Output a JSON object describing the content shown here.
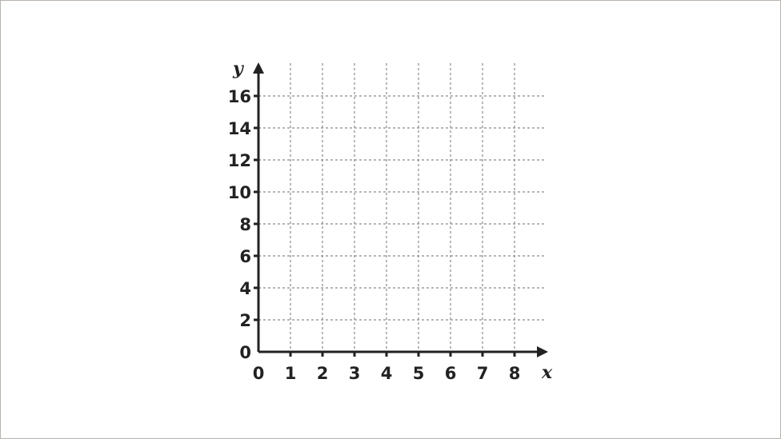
{
  "chart_data": {
    "type": "scatter",
    "title": "",
    "xlabel": "x",
    "ylabel": "y",
    "xlim": [
      0,
      8
    ],
    "ylim": [
      0,
      16
    ],
    "x_ticks": [
      "0",
      "1",
      "2",
      "3",
      "4",
      "5",
      "6",
      "7",
      "8"
    ],
    "y_ticks": [
      "0",
      "2",
      "4",
      "6",
      "8",
      "10",
      "12",
      "14",
      "16"
    ],
    "grid": true,
    "grid_style": "dotted",
    "series": [],
    "colors": {
      "axis": "#222222",
      "grid": "#8a8a8a"
    }
  }
}
